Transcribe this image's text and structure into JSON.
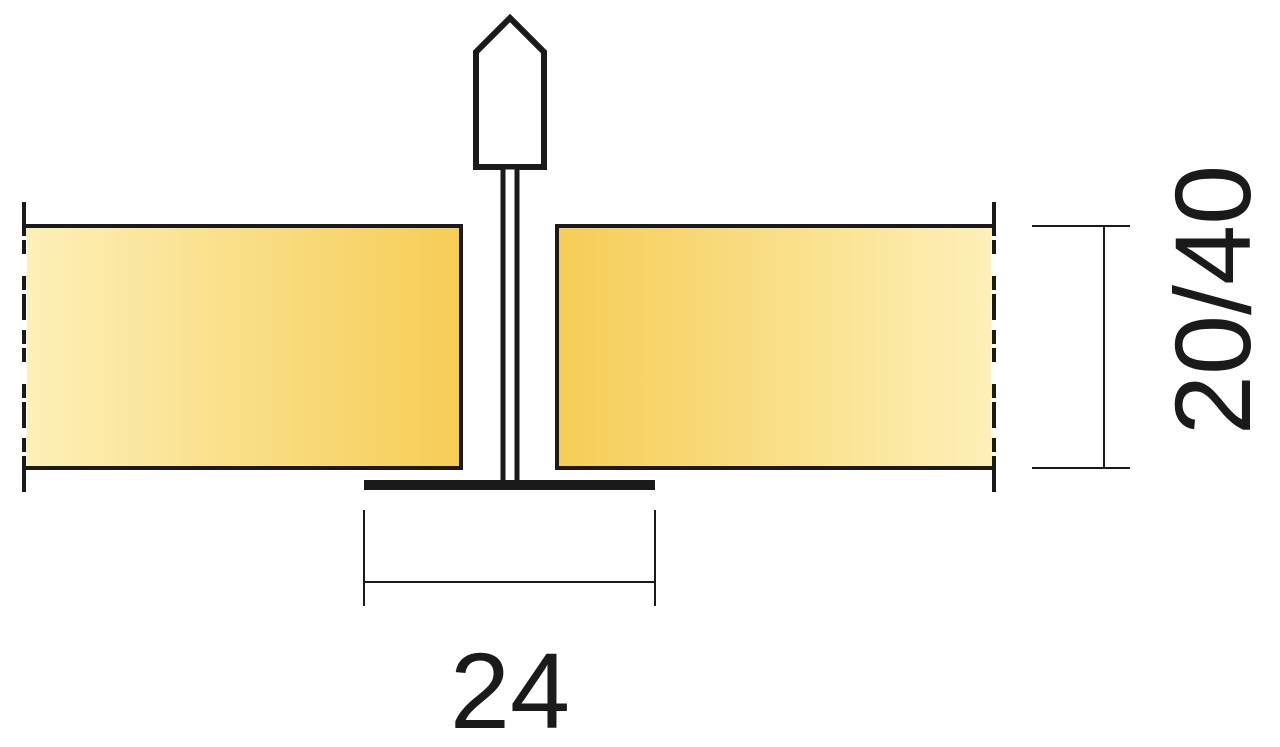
{
  "dimensions": {
    "width_label": "24",
    "height_label": "20/40"
  },
  "colors": {
    "outline": "#1a1a1a",
    "panel_edge": "#fdf0b8",
    "panel_core": "#f6cd55",
    "background": "#ffffff"
  }
}
